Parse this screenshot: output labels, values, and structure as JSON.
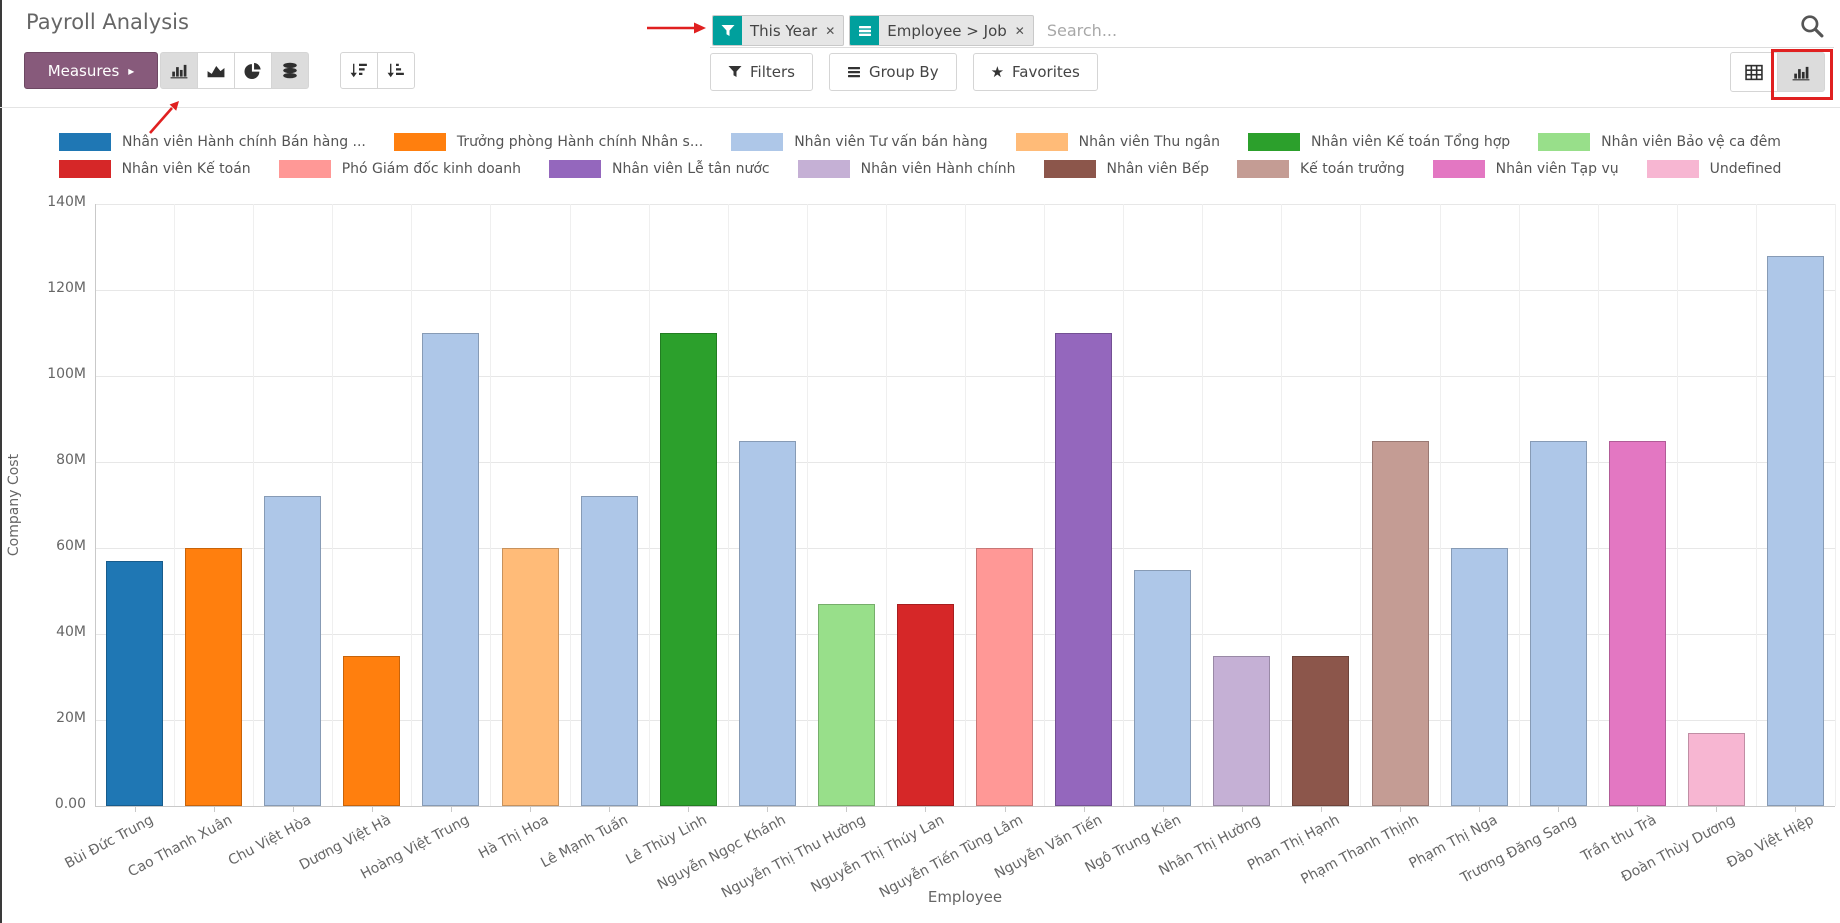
{
  "icons": {
    "close": "✕",
    "star": "★",
    "caret_right": "▸"
  },
  "colors": {
    "odoo_purple": "#875A7B",
    "facet_teal": "#00A09D",
    "annotation_red": "#e02020"
  },
  "control_panel": {
    "title": "Payroll Analysis",
    "search": {
      "facets": [
        {
          "icon": "filter-icon",
          "label": "This Year"
        },
        {
          "icon": "group-list-icon",
          "label": "Employee > Job"
        }
      ],
      "placeholder": "Search..."
    },
    "buttons": {
      "measures": "Measures",
      "filters": "Filters",
      "group_by": "Group By",
      "favorites": "Favorites"
    },
    "toolbar": {
      "chart_type_buttons": [
        {
          "icon": "bar-chart-icon",
          "active": true
        },
        {
          "icon": "area-chart-icon",
          "active": false
        },
        {
          "icon": "pie-chart-icon",
          "active": false
        },
        {
          "icon": "stacked-icon",
          "active": true
        }
      ],
      "sort_buttons": [
        {
          "icon": "sort-desc-icon",
          "active": false
        },
        {
          "icon": "sort-asc-icon",
          "active": false
        }
      ],
      "view_switcher": [
        {
          "icon": "table-view-icon",
          "active": false
        },
        {
          "icon": "chart-view-icon",
          "active": true,
          "highlighted": true
        }
      ]
    }
  },
  "annotations": [
    {
      "type": "arrow",
      "target": "this-year-facet"
    },
    {
      "type": "arrow",
      "target": "bar-chart-type-button"
    },
    {
      "type": "box",
      "target": "chart-view-button"
    }
  ],
  "chart_data": {
    "type": "bar",
    "title": "",
    "xlabel": "Employee",
    "ylabel": "Company Cost",
    "unit": "M",
    "ylim_m": [
      0,
      140
    ],
    "ytick_step_m": 20,
    "ytick_labels": [
      "0.00",
      "20M",
      "40M",
      "60M",
      "80M",
      "100M",
      "120M",
      "140M"
    ],
    "grid": true,
    "legend_position": "top",
    "legend": [
      {
        "label": "Nhân viên Hành chính Bán hàng ...",
        "color": "#1f77b4"
      },
      {
        "label": "Trưởng phòng Hành chính Nhân s...",
        "color": "#ff7f0e"
      },
      {
        "label": "Nhân viên Tư vấn bán hàng",
        "color": "#aec7e8"
      },
      {
        "label": "Nhân viên Thu ngân",
        "color": "#ffbb78"
      },
      {
        "label": "Nhân viên Kế toán Tổng hợp",
        "color": "#2ca02c"
      },
      {
        "label": "Nhân viên Bảo vệ ca đêm",
        "color": "#98df8a"
      },
      {
        "label": "Nhân viên Kế toán",
        "color": "#d62728"
      },
      {
        "label": "Phó Giám đốc kinh doanh",
        "color": "#ff9896"
      },
      {
        "label": "Nhân viên Lễ tân nước",
        "color": "#9467bd"
      },
      {
        "label": "Nhân viên Hành chính",
        "color": "#c5b0d5"
      },
      {
        "label": "Nhân viên Bếp",
        "color": "#8c564b"
      },
      {
        "label": "Kế toán trưởng",
        "color": "#c49c94"
      },
      {
        "label": "Nhân viên Tạp vụ",
        "color": "#e377c2"
      },
      {
        "label": "Undefined",
        "color": "#f7b6d2"
      }
    ],
    "bars": [
      {
        "employee": "Bùi Đức Trung",
        "job": "Nhân viên Hành chính Bán hàng ...",
        "value_m": 57
      },
      {
        "employee": "Cao Thanh Xuân",
        "job": "Trưởng phòng Hành chính Nhân s...",
        "value_m": 60
      },
      {
        "employee": "Chu Việt Hòa",
        "job": "Nhân viên Tư vấn bán hàng",
        "value_m": 72
      },
      {
        "employee": "Dương Việt Hà",
        "job": "Trưởng phòng Hành chính Nhân s...",
        "value_m": 35
      },
      {
        "employee": "Hoàng Việt Trung",
        "job": "Nhân viên Tư vấn bán hàng",
        "value_m": 110
      },
      {
        "employee": "Hà Thị Hoa",
        "job": "Nhân viên Thu ngân",
        "value_m": 60
      },
      {
        "employee": "Lê Mạnh Tuấn",
        "job": "Nhân viên Tư vấn bán hàng",
        "value_m": 72
      },
      {
        "employee": "Lê Thùy Linh",
        "job": "Nhân viên Kế toán Tổng hợp",
        "value_m": 110
      },
      {
        "employee": "Nguyễn Ngọc Khánh",
        "job": "Nhân viên Tư vấn bán hàng",
        "value_m": 85
      },
      {
        "employee": "Nguyễn Thị Thu Hường",
        "job": "Nhân viên Bảo vệ ca đêm",
        "value_m": 47
      },
      {
        "employee": "Nguyễn Thị Thúy Lan",
        "job": "Nhân viên Kế toán",
        "value_m": 47
      },
      {
        "employee": "Nguyễn Tiến Tùng Lâm",
        "job": "Phó Giám đốc kinh doanh",
        "value_m": 60
      },
      {
        "employee": "Nguyễn Văn Tiến",
        "job": "Nhân viên Lễ tân nước",
        "value_m": 110
      },
      {
        "employee": "Ngô Trung Kiên",
        "job": "Nhân viên Tư vấn bán hàng",
        "value_m": 55
      },
      {
        "employee": "Nhân Thị Hường",
        "job": "Nhân viên Hành chính",
        "value_m": 35
      },
      {
        "employee": "Phan Thị Hạnh",
        "job": "Nhân viên Bếp",
        "value_m": 35
      },
      {
        "employee": "Phạm Thanh Thịnh",
        "job": "Kế toán trưởng",
        "value_m": 85
      },
      {
        "employee": "Phạm Thị Nga",
        "job": "Nhân viên Tư vấn bán hàng",
        "value_m": 60
      },
      {
        "employee": "Trương Đăng Sang",
        "job": "Nhân viên Tư vấn bán hàng",
        "value_m": 85
      },
      {
        "employee": "Trần thu Trà",
        "job": "Nhân viên Tạp vụ",
        "value_m": 85
      },
      {
        "employee": "Đoàn Thùy Dương",
        "job": "Undefined",
        "value_m": 17
      },
      {
        "employee": "Đào Việt Hiệp",
        "job": "Nhân viên Tư vấn bán hàng",
        "value_m": 128
      }
    ]
  }
}
